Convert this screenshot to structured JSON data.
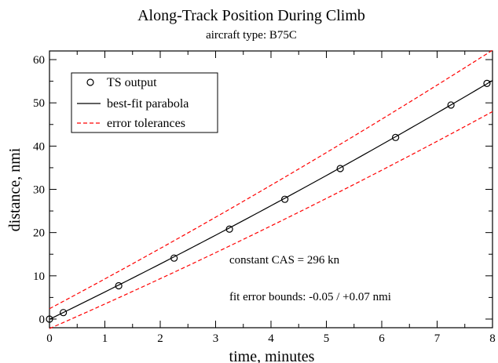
{
  "chart_data": {
    "type": "line",
    "title": "Along-Track Position During Climb",
    "subtitle": "aircraft type: B75C",
    "xlabel": "time, minutes",
    "ylabel": "distance, nmi",
    "xlim": [
      0,
      8
    ],
    "ylim": [
      -2,
      62
    ],
    "xticks": [
      "0",
      "1",
      "2",
      "3",
      "4",
      "5",
      "6",
      "7",
      "8"
    ],
    "yticks": [
      "0",
      "10",
      "20",
      "30",
      "40",
      "50",
      "60"
    ],
    "grid": false,
    "legend_position": "top-left",
    "series": [
      {
        "name": "TS output",
        "style": "markers",
        "marker": "open-circle",
        "color": "#000000",
        "x": [
          0,
          0.25,
          1.25,
          2.25,
          3.25,
          4.25,
          5.25,
          6.25,
          7.25,
          7.9
        ],
        "y": [
          0,
          1.5,
          7.7,
          14.1,
          20.8,
          27.7,
          34.8,
          42.0,
          49.5,
          54.5
        ]
      },
      {
        "name": "best-fit parabola",
        "style": "solid",
        "color": "#000000",
        "coefficients": {
          "a": 0.084,
          "b": 6.23,
          "c": -0.05
        },
        "x_range": [
          0,
          8
        ]
      },
      {
        "name": "error tolerances",
        "style": "dashed",
        "color": "#ff0000",
        "upper": {
          "a": 0.084,
          "b": 6.8,
          "c": 2.4
        },
        "lower": {
          "a": 0.084,
          "b": 5.6,
          "c": -2.2
        },
        "x_range": [
          0,
          8
        ]
      }
    ],
    "annotations": [
      {
        "text": "constant CAS = 296 kn",
        "x": 3.27,
        "y": 12.8
      },
      {
        "text": "fit error bounds: -0.05 / +0.07 nmi",
        "x": 3.27,
        "y": 5.2
      }
    ]
  }
}
